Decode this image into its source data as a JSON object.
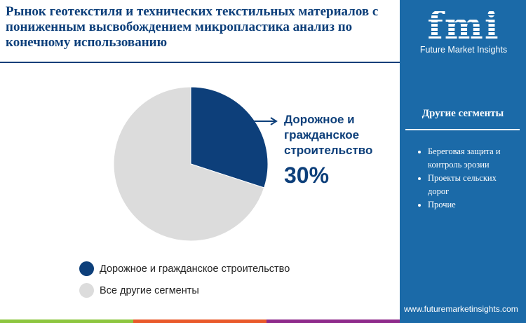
{
  "title": "Рынок геотекстиля и технических текстильных материалов с пониженным высвобождением микропластика анализ по конечному использованию",
  "brand": {
    "logo_text": "fmi",
    "name": "Future Market Insights",
    "url": "www.futuremarketinsights.com"
  },
  "sidebar": {
    "heading": "Другие сегменты",
    "items": [
      "Береговая защита и контроль эрозии",
      "Проекты сельских дорог",
      "Прочие"
    ]
  },
  "colors": {
    "highlight": "#0d3f7a",
    "other": "#dcdcdc",
    "sidebar": "#1b6aa8",
    "bars": [
      "#8dc63f",
      "#e9592a",
      "#8e2a8b"
    ]
  },
  "chart_data": {
    "type": "pie",
    "slices": [
      {
        "label": "Дорожное и гражданское строительство",
        "value": 30,
        "color": "#0d3f7a"
      },
      {
        "label": "Все другие сегменты",
        "value": 70,
        "color": "#dcdcdc"
      }
    ],
    "callout": {
      "label": "Дорожное и гражданское строительство",
      "value_text": "30%"
    },
    "legend": "bottom"
  }
}
